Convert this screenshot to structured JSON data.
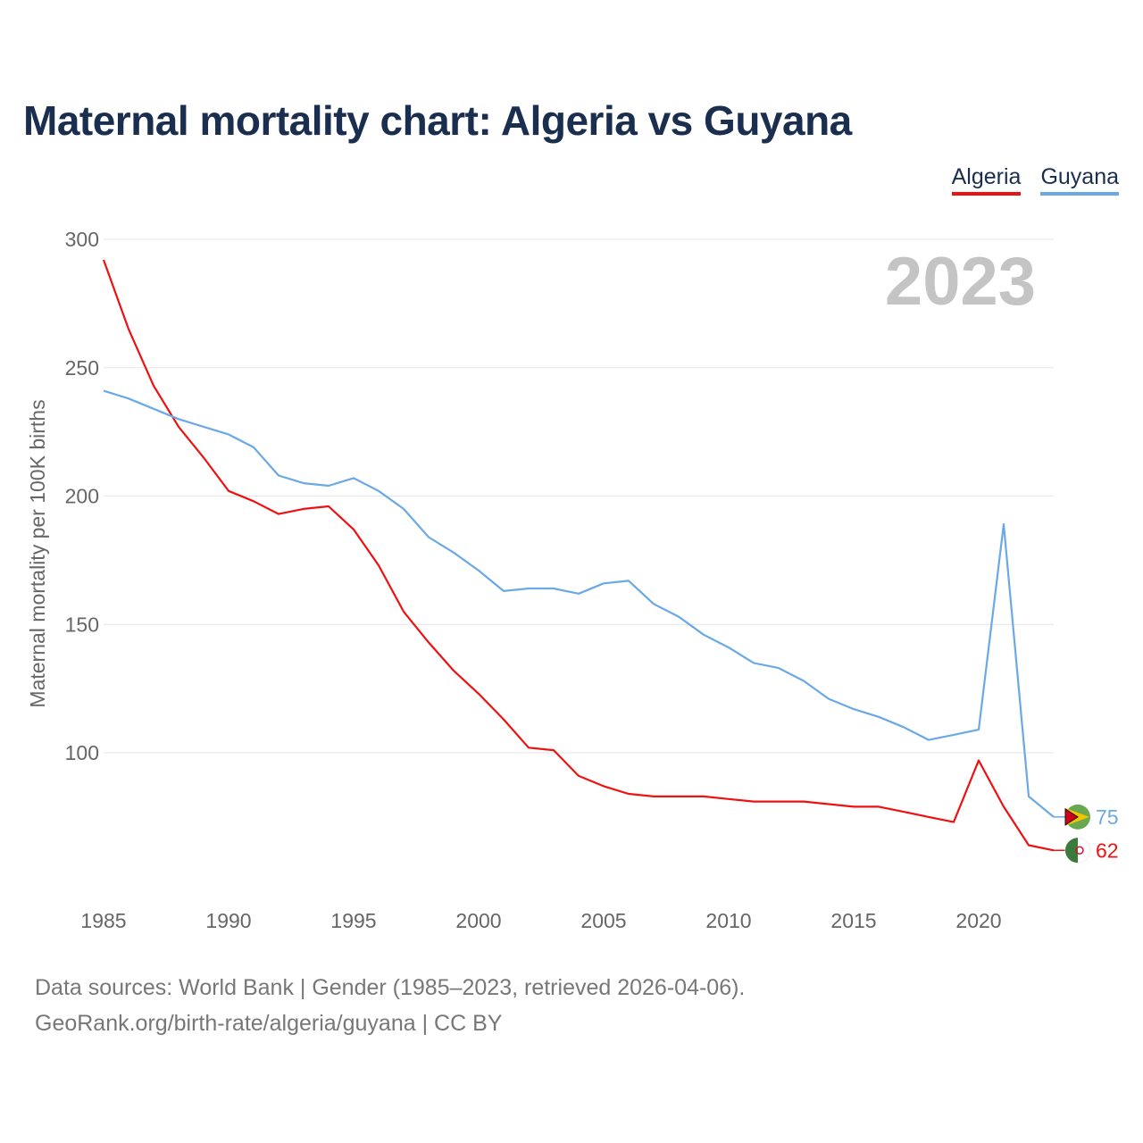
{
  "title": "Maternal mortality chart: Algeria vs Guyana",
  "legend": {
    "algeria": "Algeria",
    "guyana": "Guyana"
  },
  "year_watermark": "2023",
  "footer": {
    "line1": "Data sources: World Bank | Gender (1985–2023, retrieved 2026-04-06).",
    "line2": "GeoRank.org/birth-rate/algeria/guyana | CC BY"
  },
  "chart_data": {
    "type": "line",
    "title": "Maternal mortality chart: Algeria vs Guyana",
    "ylabel": "Maternal mortality per 100K births",
    "xlabel": "",
    "xlim": [
      1985,
      2023
    ],
    "ylim": [
      60,
      300
    ],
    "yticks": [
      100,
      150,
      200,
      250,
      300
    ],
    "xticks": [
      1985,
      1990,
      1995,
      2000,
      2005,
      2010,
      2015,
      2020
    ],
    "grid": true,
    "legend_position": "top-right",
    "x": [
      1985,
      1986,
      1987,
      1988,
      1989,
      1990,
      1991,
      1992,
      1993,
      1994,
      1995,
      1996,
      1997,
      1998,
      1999,
      2000,
      2001,
      2002,
      2003,
      2004,
      2005,
      2006,
      2007,
      2008,
      2009,
      2010,
      2011,
      2012,
      2013,
      2014,
      2015,
      2016,
      2017,
      2018,
      2019,
      2020,
      2021,
      2022,
      2023
    ],
    "series": [
      {
        "name": "Algeria",
        "color": "#ee1111",
        "end_label": "62",
        "values": [
          292,
          265,
          243,
          227,
          215,
          202,
          198,
          193,
          195,
          196,
          187,
          173,
          155,
          143,
          132,
          123,
          113,
          102,
          101,
          91,
          87,
          84,
          83,
          83,
          83,
          82,
          81,
          81,
          81,
          80,
          79,
          79,
          77,
          75,
          73,
          97,
          79,
          64,
          62
        ]
      },
      {
        "name": "Guyana",
        "color": "#6aa9e6",
        "end_label": "75",
        "values": [
          241,
          238,
          234,
          230,
          227,
          224,
          219,
          208,
          205,
          204,
          207,
          202,
          195,
          184,
          178,
          171,
          163,
          164,
          164,
          162,
          166,
          167,
          158,
          153,
          146,
          141,
          135,
          133,
          128,
          121,
          117,
          114,
          110,
          105,
          107,
          109,
          189,
          83,
          75
        ]
      }
    ]
  }
}
